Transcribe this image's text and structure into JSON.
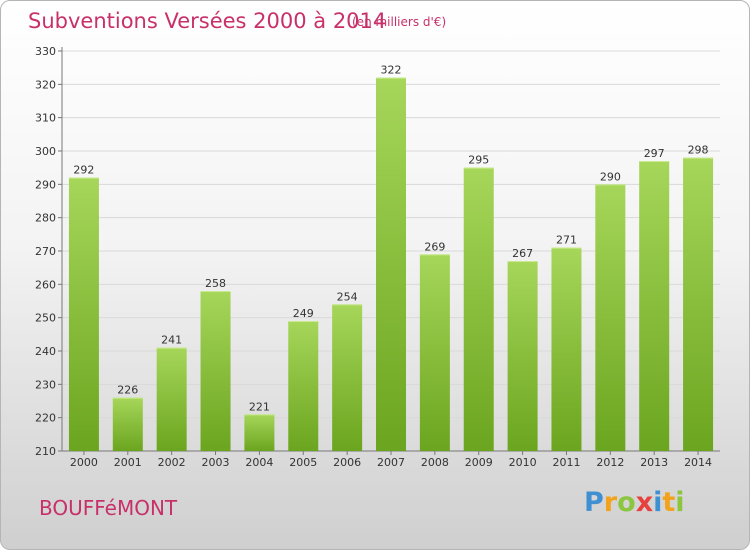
{
  "title": "Subventions Versées 2000 à 2014",
  "unit": "(en milliers d'€)",
  "city": "BOUFFéMONT",
  "logo": {
    "letters": [
      {
        "char": "P",
        "color": "#3f8fd3"
      },
      {
        "char": "r",
        "color": "#f2a21b"
      },
      {
        "char": "o",
        "color": "#8cc63f"
      },
      {
        "char": "x",
        "color": "#e8403c"
      },
      {
        "char": "i",
        "color": "#3f8fd3"
      },
      {
        "char": "t",
        "color": "#f2a21b"
      },
      {
        "char": "i",
        "color": "#8cc63f"
      }
    ]
  },
  "colors": {
    "bar_light": "#a6d65a",
    "bar_dark": "#6ba51f",
    "text_accent": "#c8306a"
  },
  "chart_data": {
    "type": "bar",
    "categories": [
      "2000",
      "2001",
      "2002",
      "2003",
      "2004",
      "2005",
      "2006",
      "2007",
      "2008",
      "2009",
      "2010",
      "2011",
      "2012",
      "2013",
      "2014"
    ],
    "values": [
      292,
      226,
      241,
      258,
      221,
      249,
      254,
      322,
      269,
      295,
      267,
      271,
      290,
      297,
      298
    ],
    "yticks": [
      210,
      220,
      230,
      240,
      250,
      260,
      270,
      280,
      290,
      300,
      310,
      320,
      330
    ],
    "ylim": [
      210,
      330
    ],
    "grid": true,
    "legend": "none"
  }
}
